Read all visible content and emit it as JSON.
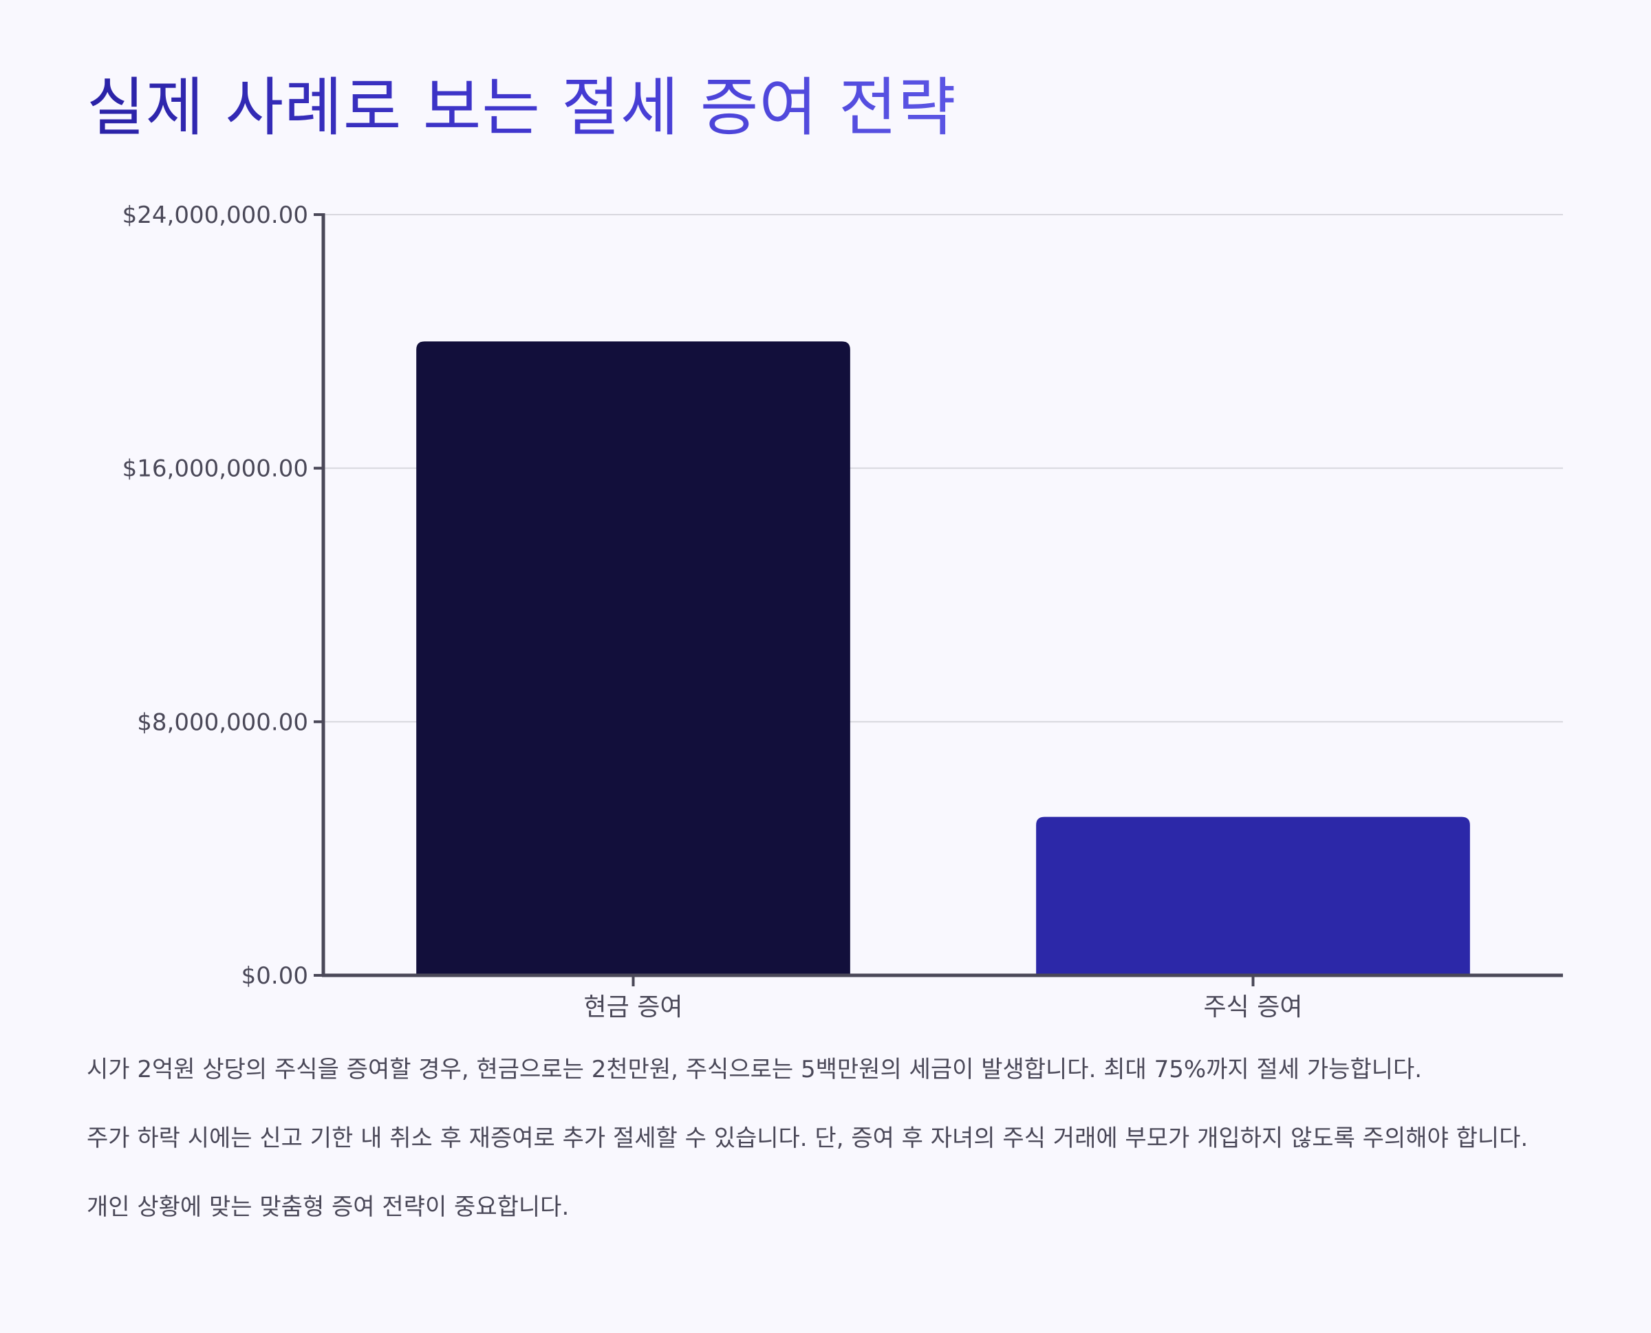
{
  "title": "실제 사례로 보는 절세 증여 전략",
  "paragraphs": [
    "시가 2억원 상당의 주식을 증여할 경우, 현금으로는 2천만원, 주식으로는 5백만원의 세금이 발생합니다. 최대 75%까지 절세 가능합니다.",
    "주가 하락 시에는 신고 기한 내 취소 후 재증여로 추가 절세할 수 있습니다. 단, 증여 후 자녀의 주식 거래에 부모가 개입하지 않도록 주의해야 합니다.",
    "개인 상황에 맞는 맞춤형 증여 전략이 중요합니다."
  ],
  "chart_data": {
    "type": "bar",
    "categories": [
      "현금 증여",
      "주식 증여"
    ],
    "values": [
      20000000,
      5000000
    ],
    "bar_colors": [
      "#120f3b",
      "#2c28a8"
    ],
    "ylim": [
      0,
      24000000
    ],
    "yticks": [
      0,
      8000000,
      16000000,
      24000000
    ],
    "ytick_labels": [
      "$0.00",
      "$8,000,000.00",
      "$16,000,000.00",
      "$24,000,000.00"
    ],
    "grid": true,
    "xlabel": "",
    "ylabel": ""
  }
}
